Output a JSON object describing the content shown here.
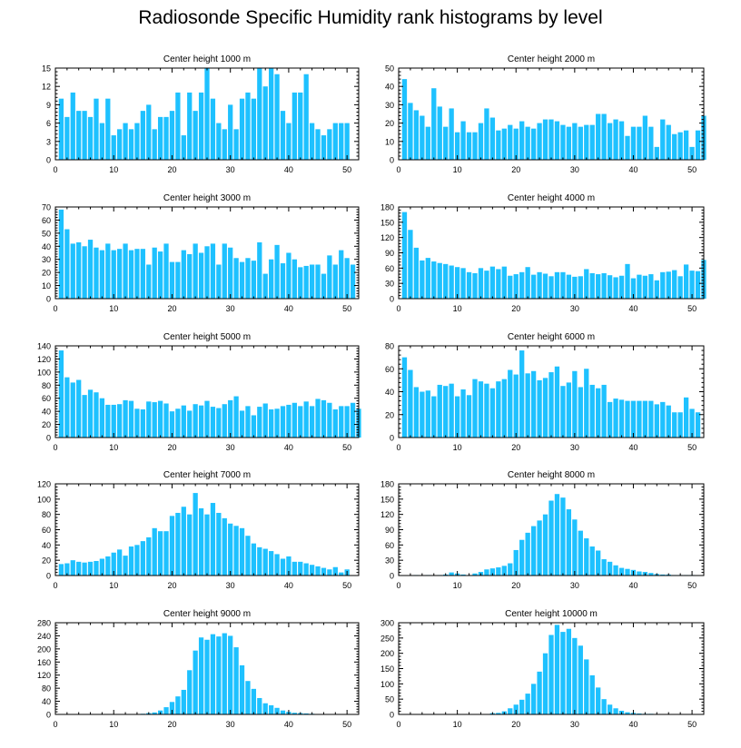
{
  "title": "Radiosonde Specific Humidity rank histograms by level",
  "bar_color": "#1ec1ff",
  "chart_data": [
    {
      "type": "bar",
      "title": "Center height 1000 m",
      "ylim": [
        0,
        15
      ],
      "yticks": [
        0,
        3,
        6,
        9,
        12,
        15
      ],
      "xlim": [
        0,
        52
      ],
      "xticks": [
        0,
        10,
        20,
        30,
        40,
        50
      ],
      "values": [
        10,
        7,
        11,
        8,
        8,
        7,
        10,
        6,
        10,
        4,
        5,
        6,
        5,
        6,
        8,
        9,
        5,
        7,
        7,
        8,
        11,
        4,
        11,
        8,
        11,
        15,
        10,
        6,
        5,
        9,
        5,
        10,
        11,
        10,
        15,
        12,
        15,
        14,
        8,
        6,
        11,
        11,
        14,
        6,
        5,
        4,
        5,
        6,
        6,
        6
      ]
    },
    {
      "type": "bar",
      "title": "Center height 2000 m",
      "ylim": [
        0,
        50
      ],
      "yticks": [
        0,
        10,
        20,
        30,
        40,
        50
      ],
      "xlim": [
        0,
        52
      ],
      "xticks": [
        0,
        10,
        20,
        30,
        40,
        50
      ],
      "values": [
        44,
        31,
        27,
        24,
        18,
        39,
        29,
        18,
        28,
        15,
        21,
        15,
        15,
        20,
        28,
        23,
        16,
        17,
        19,
        17,
        21,
        18,
        17,
        20,
        22,
        22,
        21,
        19,
        18,
        20,
        18,
        19,
        19,
        25,
        25,
        20,
        22,
        21,
        13,
        18,
        18,
        24,
        18,
        7,
        22,
        19,
        14,
        15,
        16,
        7,
        16,
        24
      ]
    },
    {
      "type": "bar",
      "title": "Center height 3000 m",
      "ylim": [
        0,
        70
      ],
      "yticks": [
        0,
        10,
        20,
        30,
        40,
        50,
        60,
        70
      ],
      "xlim": [
        0,
        52
      ],
      "xticks": [
        0,
        10,
        20,
        30,
        40,
        50
      ],
      "values": [
        68,
        53,
        42,
        43,
        40,
        45,
        39,
        37,
        42,
        37,
        38,
        42,
        37,
        38,
        38,
        26,
        39,
        36,
        42,
        28,
        28,
        37,
        34,
        42,
        35,
        40,
        42,
        26,
        42,
        39,
        31,
        28,
        31,
        29,
        43,
        19,
        30,
        41,
        27,
        35,
        30,
        24,
        25,
        26,
        26,
        19,
        33,
        26,
        37,
        31,
        26
      ]
    },
    {
      "type": "bar",
      "title": "Center height 4000 m",
      "ylim": [
        0,
        180
      ],
      "yticks": [
        0,
        30,
        60,
        90,
        120,
        150,
        180
      ],
      "xlim": [
        0,
        52
      ],
      "xticks": [
        0,
        10,
        20,
        30,
        40,
        50
      ],
      "values": [
        170,
        135,
        100,
        75,
        80,
        73,
        70,
        68,
        65,
        62,
        60,
        52,
        50,
        60,
        55,
        63,
        58,
        63,
        45,
        48,
        52,
        62,
        47,
        52,
        49,
        44,
        52,
        52,
        47,
        43,
        44,
        58,
        50,
        48,
        50,
        46,
        42,
        45,
        68,
        40,
        47,
        45,
        48,
        36,
        52,
        53,
        56,
        44,
        67,
        55,
        54,
        76
      ]
    },
    {
      "type": "bar",
      "title": "Center height 5000 m",
      "ylim": [
        0,
        140
      ],
      "yticks": [
        0,
        20,
        40,
        60,
        80,
        100,
        120,
        140
      ],
      "xlim": [
        0,
        52
      ],
      "xticks": [
        0,
        10,
        20,
        30,
        40,
        50
      ],
      "values": [
        133,
        92,
        84,
        88,
        65,
        73,
        69,
        60,
        50,
        50,
        51,
        57,
        56,
        44,
        43,
        55,
        54,
        56,
        52,
        40,
        44,
        49,
        41,
        51,
        49,
        56,
        47,
        45,
        51,
        57,
        63,
        41,
        48,
        34,
        47,
        52,
        43,
        44,
        48,
        50,
        53,
        48,
        55,
        48,
        59,
        57,
        53,
        43,
        48,
        48,
        53,
        44
      ]
    },
    {
      "type": "bar",
      "title": "Center height 6000 m",
      "ylim": [
        0,
        80
      ],
      "yticks": [
        0,
        20,
        40,
        60,
        80
      ],
      "xlim": [
        0,
        52
      ],
      "xticks": [
        0,
        10,
        20,
        30,
        40,
        50
      ],
      "values": [
        70,
        59,
        44,
        40,
        41,
        36,
        46,
        45,
        47,
        36,
        42,
        37,
        51,
        49,
        47,
        43,
        49,
        51,
        59,
        55,
        76,
        56,
        58,
        50,
        52,
        57,
        62,
        45,
        48,
        58,
        44,
        60,
        46,
        43,
        46,
        31,
        34,
        33,
        32,
        32,
        32,
        32,
        32,
        29,
        31,
        28,
        22,
        22,
        35,
        25,
        22
      ]
    },
    {
      "type": "bar",
      "title": "Center height 7000 m",
      "ylim": [
        0,
        120
      ],
      "yticks": [
        0,
        20,
        40,
        60,
        80,
        100,
        120
      ],
      "xlim": [
        0,
        52
      ],
      "xticks": [
        0,
        10,
        20,
        30,
        40,
        50
      ],
      "values": [
        15,
        16,
        20,
        18,
        17,
        18,
        19,
        22,
        25,
        30,
        34,
        26,
        38,
        40,
        45,
        50,
        62,
        58,
        58,
        78,
        82,
        90,
        80,
        108,
        88,
        80,
        95,
        82,
        75,
        68,
        65,
        62,
        52,
        42,
        37,
        35,
        32,
        28,
        22,
        25,
        18,
        18,
        16,
        14,
        12,
        10,
        8,
        11,
        4,
        8
      ]
    },
    {
      "type": "bar",
      "title": "Center height 8000 m",
      "ylim": [
        0,
        180
      ],
      "yticks": [
        0,
        30,
        60,
        90,
        120,
        150,
        180
      ],
      "xlim": [
        0,
        52
      ],
      "xticks": [
        0,
        10,
        20,
        30,
        40,
        50
      ],
      "values": [
        0,
        0,
        1,
        0,
        1,
        0,
        1,
        2,
        6,
        4,
        2,
        1,
        4,
        7,
        12,
        14,
        16,
        19,
        24,
        50,
        70,
        84,
        97,
        108,
        120,
        147,
        160,
        153,
        130,
        110,
        88,
        73,
        57,
        49,
        32,
        27,
        20,
        15,
        13,
        11,
        8,
        7,
        5,
        3,
        2,
        2,
        1,
        1,
        1,
        1,
        0,
        0
      ]
    },
    {
      "type": "bar",
      "title": "Center height 9000 m",
      "ylim": [
        0,
        280
      ],
      "yticks": [
        0,
        40,
        80,
        120,
        160,
        200,
        240,
        280
      ],
      "xlim": [
        0,
        52
      ],
      "xticks": [
        0,
        10,
        20,
        30,
        40,
        50
      ],
      "values": [
        0,
        0,
        0,
        0,
        0,
        0,
        0,
        0,
        0,
        0,
        0,
        0,
        0,
        0,
        2,
        4,
        6,
        12,
        22,
        38,
        55,
        75,
        135,
        195,
        235,
        228,
        245,
        238,
        248,
        240,
        205,
        150,
        102,
        78,
        50,
        34,
        28,
        20,
        12,
        8,
        5,
        4,
        3,
        2,
        1,
        1,
        1,
        1,
        0,
        0,
        0,
        0
      ]
    },
    {
      "type": "bar",
      "title": "Center height 10000 m",
      "ylim": [
        0,
        300
      ],
      "yticks": [
        0,
        50,
        100,
        150,
        200,
        250,
        300
      ],
      "xlim": [
        0,
        52
      ],
      "xticks": [
        0,
        10,
        20,
        30,
        40,
        50
      ],
      "values": [
        0,
        0,
        0,
        0,
        0,
        0,
        0,
        0,
        0,
        0,
        0,
        0,
        0,
        0,
        0,
        4,
        5,
        10,
        20,
        32,
        48,
        68,
        100,
        140,
        200,
        260,
        293,
        270,
        280,
        250,
        225,
        180,
        128,
        88,
        50,
        32,
        20,
        12,
        7,
        5,
        3,
        2,
        2,
        1,
        1,
        1,
        1,
        0,
        0,
        0,
        0,
        0
      ]
    }
  ]
}
